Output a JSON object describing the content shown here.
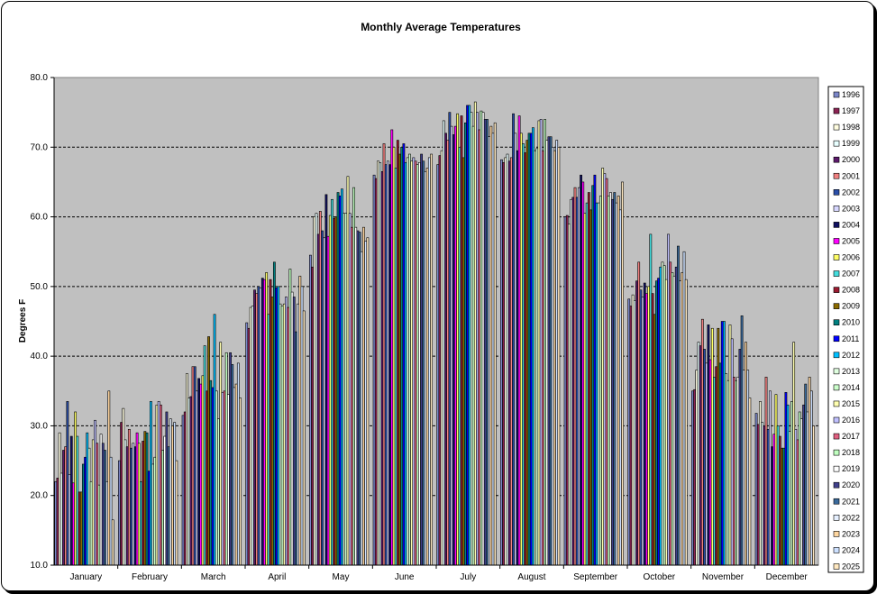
{
  "chart_data": {
    "type": "bar",
    "title": "Monthly Average Temperatures",
    "xlabel": "",
    "ylabel": "Degrees F",
    "ylim": [
      10,
      80
    ],
    "yticks": [
      "10.0",
      "20.0",
      "30.0",
      "40.0",
      "50.0",
      "60.0",
      "70.0",
      "80.0"
    ],
    "grid": true,
    "legend": "right",
    "categories": [
      "January",
      "February",
      "March",
      "April",
      "May",
      "June",
      "July",
      "August",
      "September",
      "October",
      "November",
      "December"
    ],
    "series": [
      {
        "name": "1996",
        "color": "#7b86c8",
        "values": [
          22.0,
          25.0,
          31.5,
          44.8,
          54.5,
          66.0,
          67.5,
          68.2,
          60.0,
          48.2,
          35.0,
          31.8
        ]
      },
      {
        "name": "1997",
        "color": "#8b2252",
        "values": [
          22.5,
          30.5,
          32.0,
          44.0,
          52.8,
          65.5,
          68.8,
          67.8,
          60.2,
          47.2,
          35.2,
          30.2
        ]
      },
      {
        "name": "1998",
        "color": "#fffde0",
        "values": [
          29.0,
          32.5,
          37.5,
          47.0,
          60.0,
          68.0,
          69.5,
          68.5,
          59.0,
          48.8,
          38.0,
          33.5
        ]
      },
      {
        "name": "1999",
        "color": "#e8ffff",
        "values": [
          23.2,
          28.0,
          34.0,
          47.2,
          60.5,
          67.8,
          73.8,
          69.0,
          62.5,
          48.0,
          42.0,
          30.5
        ]
      },
      {
        "name": "2000",
        "color": "#5c1a6b",
        "values": [
          26.5,
          27.0,
          34.2,
          49.5,
          57.5,
          66.5,
          72.0,
          68.0,
          62.8,
          50.8,
          41.5,
          30.0
        ]
      },
      {
        "name": "2001",
        "color": "#f08080",
        "values": [
          27.0,
          29.5,
          38.5,
          49.0,
          60.8,
          70.5,
          71.0,
          68.5,
          64.2,
          53.5,
          45.3,
          37.0
        ]
      },
      {
        "name": "2002",
        "color": "#2a4ea8",
        "values": [
          33.5,
          26.8,
          38.5,
          50.0,
          58.0,
          67.5,
          75.0,
          74.8,
          62.8,
          49.5,
          41.0,
          29.5
        ]
      },
      {
        "name": "2003",
        "color": "#d7d7ff",
        "values": [
          23.0,
          27.5,
          35.0,
          49.8,
          57.0,
          68.0,
          73.0,
          72.0,
          64.2,
          48.5,
          39.0,
          35.0
        ]
      },
      {
        "name": "2004",
        "color": "#101060",
        "values": [
          28.5,
          27.0,
          36.8,
          51.2,
          63.2,
          67.5,
          71.8,
          69.5,
          66.0,
          50.5,
          44.5,
          27.0
        ]
      },
      {
        "name": "2005",
        "color": "#ff00ff",
        "values": [
          21.8,
          29.0,
          36.0,
          51.0,
          57.2,
          72.5,
          73.0,
          74.5,
          65.0,
          49.0,
          39.5,
          28.8
        ]
      },
      {
        "name": "2006",
        "color": "#ffff66",
        "values": [
          32.0,
          27.5,
          37.2,
          52.0,
          60.2,
          70.0,
          74.8,
          72.0,
          60.5,
          50.0,
          44.0,
          34.5
        ]
      },
      {
        "name": "2007",
        "color": "#44dddd",
        "values": [
          28.5,
          22.0,
          41.5,
          46.0,
          62.5,
          67.0,
          70.0,
          70.5,
          62.0,
          57.5,
          37.0,
          30.0
        ]
      },
      {
        "name": "2008",
        "color": "#9b1b30",
        "values": [
          20.5,
          27.8,
          35.0,
          51.0,
          59.8,
          71.0,
          74.5,
          69.2,
          63.5,
          49.0,
          38.5,
          28.5
        ]
      },
      {
        "name": "2009",
        "color": "#8b6b00",
        "values": [
          20.5,
          29.2,
          42.8,
          48.5,
          60.0,
          69.0,
          68.5,
          71.0,
          61.0,
          46.0,
          44.0,
          26.8
        ]
      },
      {
        "name": "2010",
        "color": "#008080",
        "values": [
          24.5,
          29.0,
          36.5,
          53.5,
          63.5,
          70.0,
          73.5,
          72.0,
          64.5,
          50.8,
          39.0,
          26.8
        ]
      },
      {
        "name": "2011",
        "color": "#0000ff",
        "values": [
          25.5,
          23.5,
          35.5,
          49.8,
          63.0,
          70.5,
          76.0,
          72.0,
          66.0,
          51.2,
          45.0,
          34.8
        ]
      },
      {
        "name": "2012",
        "color": "#00bfff",
        "values": [
          29.0,
          33.5,
          46.0,
          50.0,
          64.0,
          67.8,
          76.0,
          72.8,
          62.0,
          52.8,
          45.0,
          33.0
        ]
      },
      {
        "name": "2013",
        "color": "#e0ffe0",
        "values": [
          26.8,
          24.5,
          35.0,
          47.5,
          60.5,
          68.5,
          75.0,
          69.5,
          62.0,
          53.5,
          37.5,
          29.2
        ]
      },
      {
        "name": "2014",
        "color": "#ccffcc",
        "values": [
          22.0,
          25.5,
          31.0,
          47.2,
          60.5,
          69.0,
          73.0,
          69.8,
          63.0,
          53.0,
          36.5,
          33.5
        ]
      },
      {
        "name": "2015",
        "color": "#ffffb0",
        "values": [
          28.0,
          33.0,
          42.0,
          47.5,
          65.8,
          68.0,
          76.5,
          73.8,
          67.0,
          51.0,
          44.5,
          42.0
        ]
      },
      {
        "name": "2016",
        "color": "#c0c0ff",
        "values": [
          30.8,
          33.5,
          34.8,
          48.5,
          60.5,
          68.5,
          75.0,
          74.0,
          66.2,
          57.5,
          42.5,
          29.5
        ]
      },
      {
        "name": "2017",
        "color": "#e06080",
        "values": [
          27.5,
          33.0,
          35.0,
          47.0,
          58.5,
          68.0,
          72.5,
          69.5,
          65.5,
          53.5,
          37.0,
          28.0
        ]
      },
      {
        "name": "2018",
        "color": "#c0ffc0",
        "values": [
          21.5,
          26.5,
          40.5,
          52.5,
          64.2,
          67.5,
          75.2,
          74.0,
          63.0,
          52.0,
          36.5,
          32.0
        ]
      },
      {
        "name": "2019",
        "color": "#ffffff",
        "values": [
          28.8,
          28.5,
          34.5,
          49.2,
          58.5,
          67.8,
          75.0,
          71.0,
          63.5,
          51.5,
          37.0,
          31.0
        ]
      },
      {
        "name": "2020",
        "color": "#40408b",
        "values": [
          27.5,
          32.0,
          40.5,
          48.5,
          58.0,
          69.0,
          74.0,
          71.5,
          62.5,
          52.8,
          41.0,
          33.0
        ]
      },
      {
        "name": "2021",
        "color": "#3a6a9b",
        "values": [
          26.5,
          27.0,
          38.8,
          43.5,
          57.8,
          68.0,
          74.0,
          71.5,
          63.5,
          55.8,
          45.8,
          36.0
        ]
      },
      {
        "name": "2022",
        "color": "#e6f0ff",
        "values": [
          22.0,
          31.0,
          35.5,
          47.5,
          55.0,
          66.5,
          71.5,
          70.0,
          62.0,
          50.8,
          38.0,
          32.0
        ]
      },
      {
        "name": "2023",
        "color": "#ffd7a0",
        "values": [
          35.0,
          30.0,
          36.0,
          51.5,
          58.5,
          67.0,
          73.0,
          69.5,
          63.0,
          52.0,
          42.0,
          37.0
        ]
      },
      {
        "name": "2024",
        "color": "#cce0ff",
        "values": [
          25.5,
          30.5,
          39.0,
          50.0,
          56.5,
          68.5,
          72.0,
          71.0,
          61.0,
          55.0,
          38.0,
          35.0
        ]
      },
      {
        "name": "2025",
        "color": "#ffe8c0",
        "values": [
          16.5,
          25.0,
          34.0,
          46.5,
          57.0,
          69.0,
          73.5,
          70.0,
          65.0,
          51.0,
          34.0,
          30.0
        ]
      }
    ]
  }
}
